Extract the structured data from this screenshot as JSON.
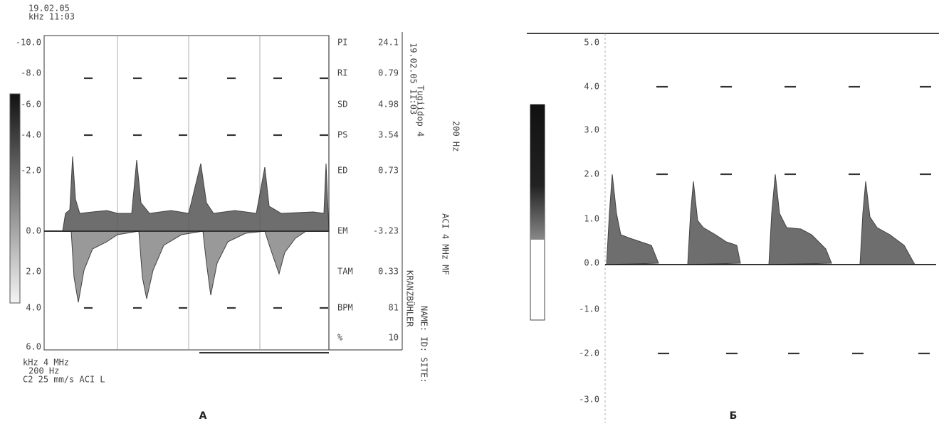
{
  "panel_a": {
    "header": [
      "19.02.05",
      "kHz 11:03"
    ],
    "y_labels": [
      "-10.0",
      "-8.0",
      "-6.0",
      "-4.0",
      "-2.0",
      "0.0",
      "2.0",
      "4.0",
      "6.0"
    ],
    "measurements": [
      {
        "label": "PI",
        "value": "24.1"
      },
      {
        "label": "RI",
        "value": "0.79"
      },
      {
        "label": "SD",
        "value": "4.98"
      },
      {
        "label": "PS",
        "value": "3.54"
      },
      {
        "label": "ED",
        "value": "0.73"
      },
      {
        "label": "EM",
        "value": "-3.23"
      },
      {
        "label": "TAM",
        "value": "0.33"
      },
      {
        "label": "BPM",
        "value": "81"
      },
      {
        "label": "%",
        "value": "10"
      }
    ],
    "side_text": [
      "19.02.05 11:03",
      "Tugiidop 4",
      "200 Hz",
      "KRANZBÜHLER",
      "NAME: ID: SITE:",
      "ACI 4 MHz MF"
    ],
    "footer": [
      "kHz   4 MHz",
      "200 Hz",
      "C2  25 mm/s  ACI  L"
    ],
    "caption": "А"
  },
  "panel_b": {
    "y_labels": [
      "5.0",
      "4.0",
      "3.0",
      "2.0",
      "1.0",
      "0.0",
      "-1.0",
      "-2.0",
      "-3.0"
    ],
    "caption": "Б"
  }
}
